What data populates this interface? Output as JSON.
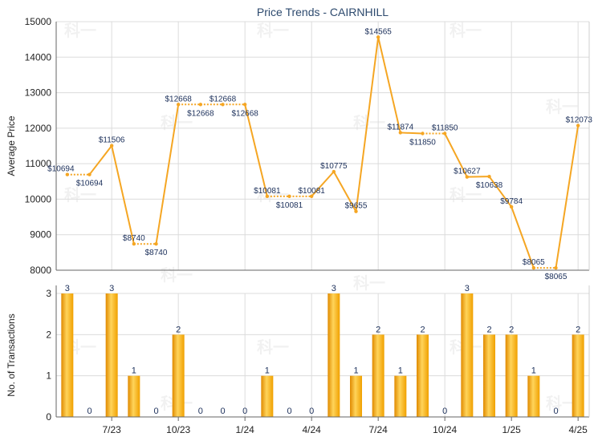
{
  "chart_data": [
    {
      "type": "line",
      "title": "Price Trends - CAIRNHILL",
      "ylabel": "Average Price",
      "ylim": [
        8000,
        15000
      ],
      "yticks": [
        8000,
        9000,
        10000,
        11000,
        12000,
        13000,
        14000,
        15000
      ],
      "grid": true,
      "line_color": "#f5a623",
      "points": [
        {
          "value": 10694,
          "label": "$10694"
        },
        {
          "value": 10694,
          "label": "$10694"
        },
        {
          "value": 11506,
          "label": "$11506"
        },
        {
          "value": 8740,
          "label": "$8740"
        },
        {
          "value": 8740,
          "label": "$8740"
        },
        {
          "value": 12668,
          "label": "$12668"
        },
        {
          "value": 12668,
          "label": "$12668"
        },
        {
          "value": 12668,
          "label": "$12668"
        },
        {
          "value": 12668,
          "label": "$12668"
        },
        {
          "value": 10081,
          "label": "$10081"
        },
        {
          "value": 10081,
          "label": "$10081"
        },
        {
          "value": 10081,
          "label": "$10081"
        },
        {
          "value": 10775,
          "label": "$10775"
        },
        {
          "value": 9655,
          "label": "$9655"
        },
        {
          "value": 14565,
          "label": "$14565"
        },
        {
          "value": 11874,
          "label": "$11874"
        },
        {
          "value": 11850,
          "label": "$11850"
        },
        {
          "value": 11850,
          "label": "$11850"
        },
        {
          "value": 10627,
          "label": "$10627"
        },
        {
          "value": 10638,
          "label": "$10638"
        },
        {
          "value": 9784,
          "label": "$9784"
        },
        {
          "value": 8065,
          "label": "$8065"
        },
        {
          "value": 8065,
          "label": "$8065"
        },
        {
          "value": 12073,
          "label": "$12073"
        }
      ]
    },
    {
      "type": "bar",
      "ylabel": "No. of Transactions",
      "ylim": [
        0,
        3
      ],
      "yticks": [
        0,
        1,
        2,
        3
      ],
      "grid": true,
      "values": [
        3,
        0,
        3,
        1,
        0,
        2,
        0,
        0,
        0,
        1,
        0,
        0,
        3,
        1,
        2,
        1,
        2,
        0,
        3,
        2,
        2,
        1,
        0,
        2
      ],
      "x_tick_labels": [
        {
          "index": 2,
          "label": "7/23"
        },
        {
          "index": 5,
          "label": "10/23"
        },
        {
          "index": 8,
          "label": "1/24"
        },
        {
          "index": 11,
          "label": "4/24"
        },
        {
          "index": 14,
          "label": "7/24"
        },
        {
          "index": 17,
          "label": "10/24"
        },
        {
          "index": 20,
          "label": "1/25"
        },
        {
          "index": 23,
          "label": "4/25"
        }
      ]
    }
  ],
  "watermark": "科一"
}
